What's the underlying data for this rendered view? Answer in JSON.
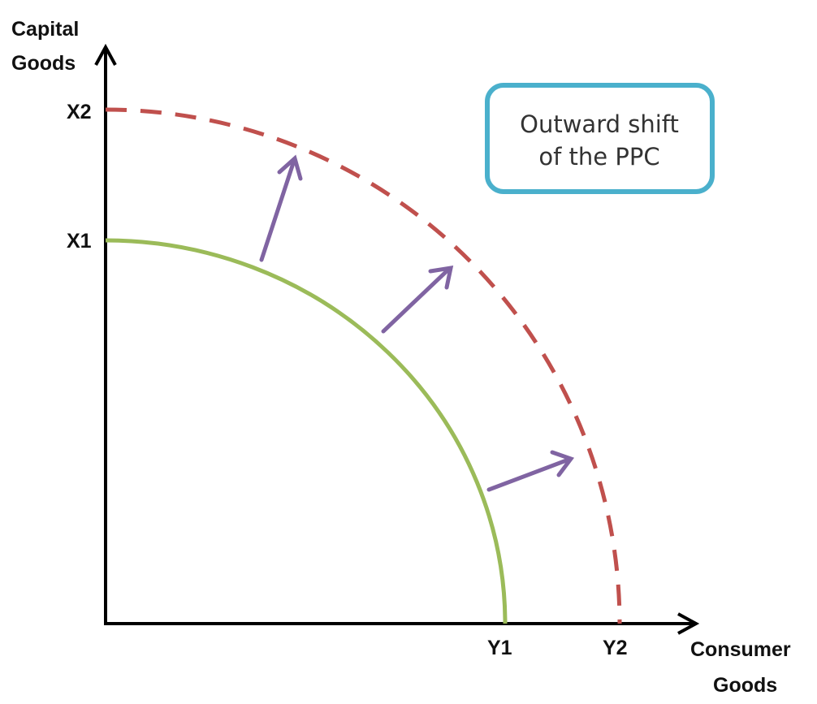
{
  "axes": {
    "y_title": [
      "Capital",
      "Goods"
    ],
    "x_title": [
      "Consumer",
      "Goods"
    ]
  },
  "ticks": {
    "x1": "X1",
    "x2": "X2",
    "y1": "Y1",
    "y2": "Y2"
  },
  "callout": {
    "lines": [
      "Outward shift",
      "of the PPC"
    ],
    "border_color": "#4ab0cc"
  },
  "curves": {
    "original_color": "#9bbb59",
    "shifted_color": "#c0504d"
  },
  "arrow_color": "#8064a2"
}
